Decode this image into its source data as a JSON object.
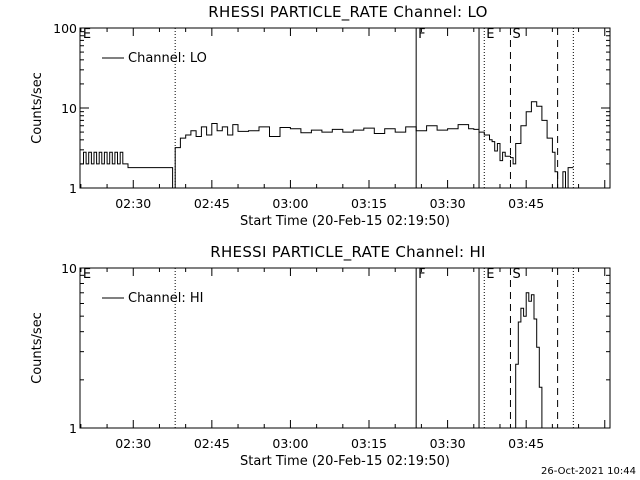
{
  "footer": {
    "timestamp": "26-Oct-2021 10:44"
  },
  "chart_data": [
    {
      "type": "line",
      "title": "RHESSI PARTICLE_RATE Channel: LO",
      "xlabel": "Start Time (20-Feb-15 02:19:50)",
      "ylabel": "Counts/sec",
      "yscale": "log",
      "ylim": [
        1,
        100
      ],
      "yticks": [
        1,
        10,
        100
      ],
      "ytick_labels": [
        "1",
        "10",
        "100"
      ],
      "xlim": [
        "02:19:50",
        "04:01:00"
      ],
      "xticks": [
        "02:30",
        "02:45",
        "03:00",
        "03:15",
        "03:30",
        "03:45"
      ],
      "legend": {
        "position": "top-left",
        "label": "Channel: LO"
      },
      "markers": [
        {
          "label": "E",
          "time": "02:20",
          "style": "none"
        },
        {
          "label": "",
          "time": "02:38",
          "style": "dotted"
        },
        {
          "label": "F",
          "time": "03:24",
          "style": "solid"
        },
        {
          "label": "",
          "time": "03:36",
          "style": "solid"
        },
        {
          "label": "E",
          "time": "03:37",
          "style": "dotted"
        },
        {
          "label": "S",
          "time": "03:42",
          "style": "dashed"
        },
        {
          "label": "",
          "time": "03:51",
          "style": "dashed"
        },
        {
          "label": "",
          "time": "03:54",
          "style": "dotted"
        }
      ],
      "series": [
        {
          "name": "Channel: LO",
          "x": [
            "02:19:50",
            "02:20:30",
            "02:21:00",
            "02:21:30",
            "02:22:00",
            "02:22:30",
            "02:23:00",
            "02:23:30",
            "02:24:00",
            "02:24:30",
            "02:25:00",
            "02:25:30",
            "02:26:00",
            "02:26:30",
            "02:27:00",
            "02:27:30",
            "02:28:00",
            "02:29:00",
            "02:30:00",
            "02:31:00",
            "02:32:00",
            "02:33:00",
            "02:34:00",
            "02:35:00",
            "02:36:00",
            "02:37:00",
            "02:37:30",
            "02:38:00",
            "02:39:00",
            "02:40:00",
            "02:41:00",
            "02:42:00",
            "02:43:00",
            "02:44:00",
            "02:45:00",
            "02:46:00",
            "02:47:00",
            "02:48:00",
            "02:49:00",
            "02:50:00",
            "02:52:00",
            "02:54:00",
            "02:56:00",
            "02:58:00",
            "03:00:00",
            "03:02:00",
            "03:04:00",
            "03:06:00",
            "03:08:00",
            "03:10:00",
            "03:12:00",
            "03:14:00",
            "03:16:00",
            "03:18:00",
            "03:20:00",
            "03:22:00",
            "03:24:00",
            "03:26:00",
            "03:28:00",
            "03:30:00",
            "03:32:00",
            "03:34:00",
            "03:35:00",
            "03:36:00",
            "03:37:00",
            "03:38:00",
            "03:38:30",
            "03:39:00",
            "03:39:30",
            "03:40:00",
            "03:40:30",
            "03:41:00",
            "03:42:00",
            "03:42:30",
            "03:43:00",
            "03:44:00",
            "03:45:00",
            "03:46:00",
            "03:47:00",
            "03:48:00",
            "03:49:00",
            "03:50:00",
            "03:50:30",
            "03:51:00",
            "03:52:00",
            "03:52:30",
            "03:53:00",
            "03:54:00"
          ],
          "y": [
            2,
            2.8,
            2,
            2.8,
            2,
            2.8,
            2,
            2.8,
            2,
            2.8,
            2,
            2.8,
            2,
            2.8,
            2,
            2.8,
            2,
            1.8,
            1.8,
            1.8,
            1.8,
            1.8,
            1.8,
            1.8,
            1.8,
            1.8,
            1,
            3.2,
            4.2,
            4.6,
            5.2,
            4.4,
            5.8,
            4.6,
            6.4,
            5.2,
            5.8,
            4.6,
            6.2,
            5.1,
            5.2,
            5.8,
            4.4,
            5.7,
            5.5,
            4.9,
            5.3,
            5.0,
            5.4,
            5.0,
            5.3,
            5.6,
            4.8,
            5.5,
            5.0,
            5.8,
            5.2,
            6.0,
            5.3,
            5.5,
            6.2,
            5.5,
            5.4,
            5.0,
            4.6,
            4.0,
            3.8,
            2.9,
            3.6,
            2.2,
            2.8,
            2.5,
            2.4,
            2.0,
            3.6,
            6.0,
            9.0,
            12.0,
            10.5,
            7.0,
            4.2,
            2.8,
            1.6,
            1,
            1.6,
            1,
            1.8,
            1.8
          ]
        }
      ]
    },
    {
      "type": "line",
      "title": "RHESSI PARTICLE_RATE Channel: HI",
      "xlabel": "Start Time (20-Feb-15 02:19:50)",
      "ylabel": "Counts/sec",
      "yscale": "log",
      "ylim": [
        1,
        10
      ],
      "yticks": [
        1,
        10
      ],
      "ytick_labels": [
        "1",
        "10"
      ],
      "xlim": [
        "02:19:50",
        "04:01:00"
      ],
      "xticks": [
        "02:30",
        "02:45",
        "03:00",
        "03:15",
        "03:30",
        "03:45"
      ],
      "legend": {
        "position": "top-left",
        "label": "Channel: HI"
      },
      "markers": [
        {
          "label": "E",
          "time": "02:20",
          "style": "none"
        },
        {
          "label": "",
          "time": "02:38",
          "style": "dotted"
        },
        {
          "label": "F",
          "time": "03:24",
          "style": "solid"
        },
        {
          "label": "",
          "time": "03:36",
          "style": "solid"
        },
        {
          "label": "E",
          "time": "03:37",
          "style": "dotted"
        },
        {
          "label": "S",
          "time": "03:42",
          "style": "dashed"
        },
        {
          "label": "",
          "time": "03:51",
          "style": "dashed"
        },
        {
          "label": "",
          "time": "03:54",
          "style": "dotted"
        }
      ],
      "series": [
        {
          "name": "Channel: HI",
          "x": [
            "03:42:30",
            "03:43:00",
            "03:43:30",
            "03:44:00",
            "03:44:30",
            "03:45:00",
            "03:45:30",
            "03:46:00",
            "03:46:30",
            "03:47:00",
            "03:47:30",
            "03:48:00"
          ],
          "y": [
            1,
            2.5,
            4.6,
            5.6,
            5.0,
            7.0,
            6.2,
            6.8,
            4.8,
            3.2,
            1.8,
            1
          ]
        }
      ]
    }
  ]
}
